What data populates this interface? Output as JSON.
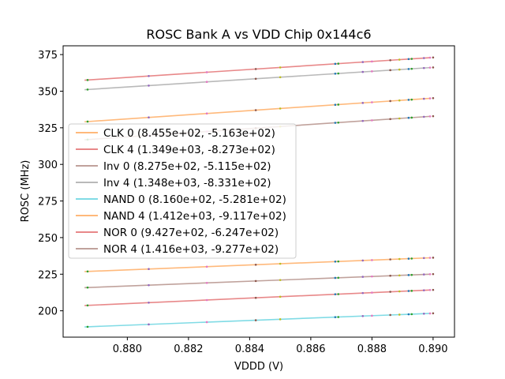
{
  "chart_data": {
    "type": "line",
    "title": "ROSC Bank A vs VDD Chip 0x144c6",
    "xlabel": "VDDD (V)",
    "ylabel": "ROSC (MHz)",
    "xlim": [
      0.8779,
      0.8907
    ],
    "ylim": [
      182,
      381
    ],
    "xticks": [
      0.88,
      0.882,
      0.884,
      0.886,
      0.888,
      0.89
    ],
    "xtick_labels": [
      "0.880",
      "0.882",
      "0.884",
      "0.886",
      "0.888",
      "0.890"
    ],
    "yticks": [
      200,
      225,
      250,
      275,
      300,
      325,
      350,
      375
    ],
    "ytick_labels": [
      "200",
      "225",
      "250",
      "275",
      "300",
      "325",
      "350",
      "375"
    ],
    "grid": false,
    "legend_position": "center-left",
    "x_range": [
      0.8786,
      0.8899
    ],
    "series": [
      {
        "name": "CLK 0 (8.455e+02, -5.163e+02)",
        "color": "#ff7f0e",
        "y": [
          226.8,
          236.2
        ],
        "points_x": [
          0.8787,
          0.8807,
          0.8826,
          0.8842,
          0.885,
          0.8868,
          0.8869,
          0.8877,
          0.888,
          0.8886,
          0.8889,
          0.8892,
          0.8893,
          0.8897,
          0.8899,
          0.89
        ]
      },
      {
        "name": "CLK 4 (1.349e+03, -8.273e+02)",
        "color": "#d62728",
        "y": [
          357.5,
          372.9
        ],
        "points_x": [
          0.8787,
          0.8807,
          0.8826,
          0.8842,
          0.885,
          0.8868,
          0.8869,
          0.8877,
          0.888,
          0.8886,
          0.8889,
          0.8892,
          0.8893,
          0.8897,
          0.8899,
          0.89
        ]
      },
      {
        "name": "Inv 0 (8.275e+02, -5.115e+02)",
        "color": "#8c564b",
        "y": [
          215.8,
          225.0
        ],
        "points_x": [
          0.8787,
          0.8807,
          0.8826,
          0.8842,
          0.885,
          0.8868,
          0.8869,
          0.8877,
          0.888,
          0.8886,
          0.8889,
          0.8892,
          0.8893,
          0.8897,
          0.8899,
          0.89
        ]
      },
      {
        "name": "Inv 4 (1.348e+03, -8.331e+02)",
        "color": "#7f7f7f",
        "y": [
          351.0,
          366.1
        ],
        "points_x": [
          0.8787,
          0.8807,
          0.8826,
          0.8842,
          0.885,
          0.8868,
          0.8869,
          0.8877,
          0.888,
          0.8886,
          0.8889,
          0.8892,
          0.8893,
          0.8897,
          0.8899,
          0.89
        ]
      },
      {
        "name": "NAND 0 (8.160e+02, -5.281e+02)",
        "color": "#17becf",
        "y": [
          189.0,
          198.2
        ],
        "points_x": [
          0.8787,
          0.8807,
          0.8826,
          0.8842,
          0.885,
          0.8868,
          0.8869,
          0.8877,
          0.888,
          0.8886,
          0.8889,
          0.8892,
          0.8893,
          0.8897,
          0.8899,
          0.89
        ]
      },
      {
        "name": "NAND 4 (1.412e+03, -9.117e+02)",
        "color": "#ff7f0e",
        "y": [
          329.1,
          345.1
        ],
        "points_x": [
          0.8787,
          0.8807,
          0.8826,
          0.8842,
          0.885,
          0.8868,
          0.8869,
          0.8877,
          0.888,
          0.8886,
          0.8889,
          0.8892,
          0.8893,
          0.8897,
          0.8899,
          0.89
        ]
      },
      {
        "name": "NOR 0 (9.427e+02, -6.247e+02)",
        "color": "#d62728",
        "y": [
          203.6,
          214.2
        ],
        "points_x": [
          0.8787,
          0.8807,
          0.8826,
          0.8842,
          0.885,
          0.8868,
          0.8869,
          0.8877,
          0.888,
          0.8886,
          0.8889,
          0.8892,
          0.8893,
          0.8897,
          0.8899,
          0.89
        ]
      },
      {
        "name": "NOR 4 (1.416e+03, -9.277e+02)",
        "color": "#8c564b",
        "y": [
          316.8,
          332.8
        ],
        "points_x": [
          0.8787,
          0.8807,
          0.8826,
          0.8842,
          0.885,
          0.8868,
          0.8869,
          0.8877,
          0.888,
          0.8886,
          0.8889,
          0.8892,
          0.8893,
          0.8897,
          0.8899,
          0.89
        ]
      }
    ]
  }
}
